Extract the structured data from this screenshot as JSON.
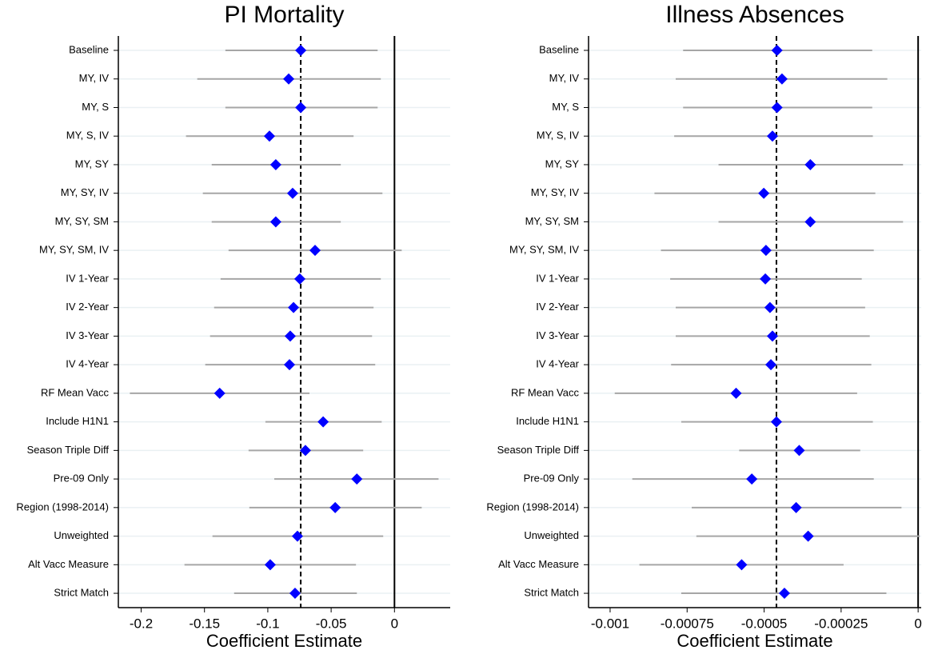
{
  "chart_data": [
    {
      "type": "coefplot",
      "title": "PI Mortality",
      "x_label": "Coefficient Estimate",
      "categories": [
        "Baseline",
        "MY, IV",
        "MY, S",
        "MY, S, IV",
        "MY, SY",
        "MY, SY, IV",
        "MY, SY, SM",
        "MY, SY, SM, IV",
        "IV 1-Year",
        "IV 2-Year",
        "IV 3-Year",
        "IV 4-Year",
        "RF Mean Vacc",
        "Include H1N1",
        "Season Triple Diff",
        "Pre-09 Only",
        "Region (1998-2014)",
        "Unweighted",
        "Alt Vacc Measure",
        "Strict Match"
      ],
      "values": [
        -0.074,
        -0.0835,
        -0.074,
        -0.0987,
        -0.0937,
        -0.0804,
        -0.0937,
        -0.0627,
        -0.0747,
        -0.0797,
        -0.0823,
        -0.0829,
        -0.138,
        -0.0563,
        -0.0703,
        -0.0297,
        -0.0468,
        -0.0766,
        -0.0981,
        -0.0785
      ],
      "ci_low": [
        -0.1335,
        -0.1557,
        -0.1335,
        -0.1646,
        -0.1443,
        -0.1513,
        -0.1443,
        -0.131,
        -0.1373,
        -0.1424,
        -0.1456,
        -0.1494,
        -0.2089,
        -0.1019,
        -0.1152,
        -0.0949,
        -0.1146,
        -0.1437,
        -0.1658,
        -0.1266
      ],
      "ci_high": [
        -0.0133,
        -0.0108,
        -0.0133,
        -0.0323,
        -0.0424,
        -0.0095,
        -0.0424,
        0.0057,
        -0.0108,
        -0.0165,
        -0.0177,
        -0.0152,
        -0.0671,
        -0.0101,
        -0.0247,
        0.0348,
        0.0215,
        -0.0089,
        -0.0304,
        -0.0297
      ],
      "reference_line": -0.074,
      "xlim": [
        -0.218,
        0.044
      ],
      "xticks": [
        -0.2,
        -0.15,
        -0.1,
        -0.05,
        0
      ],
      "color": "#0000ff",
      "ci_color": "#a6a6a6"
    },
    {
      "type": "coefplot",
      "title": "Illness Absences",
      "x_label": "Coefficient Estimate",
      "categories": [
        "Baseline",
        "MY, IV",
        "MY, S",
        "MY, S, IV",
        "MY, SY",
        "MY, SY, IV",
        "MY, SY, SM",
        "MY, SY, SM, IV",
        "IV 1-Year",
        "IV 2-Year",
        "IV 3-Year",
        "IV 4-Year",
        "RF Mean Vacc",
        "Include H1N1",
        "Season Triple Diff",
        "Pre-09 Only",
        "Region (1998-2014)",
        "Unweighted",
        "Alt Vacc Measure",
        "Strict Match"
      ],
      "values": [
        -0.000458,
        -0.000442,
        -0.000458,
        -0.000473,
        -0.00035,
        -0.000501,
        -0.00035,
        -0.000494,
        -0.000496,
        -0.000481,
        -0.000473,
        -0.000478,
        -0.000591,
        -0.00046,
        -0.000386,
        -0.00054,
        -0.000396,
        -0.000357,
        -0.000573,
        -0.000434
      ],
      "ci_low": [
        -0.000763,
        -0.000787,
        -0.000763,
        -0.000792,
        -0.000648,
        -0.000856,
        -0.000648,
        -0.000835,
        -0.000805,
        -0.000787,
        -0.000787,
        -0.000802,
        -0.000985,
        -0.000769,
        -0.000581,
        -0.000928,
        -0.000735,
        -0.00072,
        -0.000905,
        -0.000769
      ],
      "ci_high": [
        -0.000149,
        -0.0001,
        -0.000149,
        -0.000147,
        -4.9e-05,
        -0.000139,
        -4.9e-05,
        -0.000144,
        -0.000183,
        -0.000172,
        -0.000157,
        -0.000152,
        -0.000198,
        -0.000147,
        -0.000188,
        -0.000144,
        -5.4e-05,
        5e-06,
        -0.000242,
        -0.000103
      ],
      "reference_line": -0.00046,
      "xlim": [
        -0.00107,
        1e-05
      ],
      "xticks": [
        -0.001,
        -0.00075,
        -0.0005,
        -0.00025,
        0
      ],
      "color": "#0000ff",
      "ci_color": "#a6a6a6"
    }
  ]
}
